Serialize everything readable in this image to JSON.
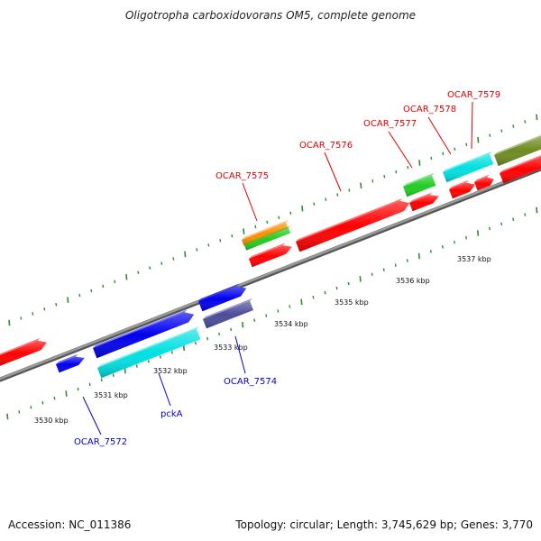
{
  "title": "Oligotropha carboxidovorans OM5, complete genome",
  "footer": {
    "accession": "Accession: NC_011386",
    "summary": "Topology: circular; Length: 3,745,629 bp; Genes: 3,770"
  },
  "colors": {
    "backbone": "#888888",
    "tick": "#2e8b2e",
    "forward_label": "#dd0000",
    "reverse_label": "#0000cc"
  },
  "kbp_labels": [
    "3530 kbp",
    "3531 kbp",
    "3532 kbp",
    "3533 kbp",
    "3534 kbp",
    "3535 kbp",
    "3536 kbp",
    "3537 kbp"
  ],
  "gene_labels": {
    "forward": [
      "OCAR_7575",
      "OCAR_7576",
      "OCAR_7577",
      "OCAR_7578",
      "OCAR_7579"
    ],
    "reverse": [
      "OCAR_7572",
      "pckA",
      "OCAR_7574"
    ]
  },
  "feature_colors": [
    "#ff0000",
    "#0000ee",
    "#00e0e0",
    "#4b4b9a",
    "#ff8c00",
    "#22cc22",
    "#6e8b22"
  ]
}
